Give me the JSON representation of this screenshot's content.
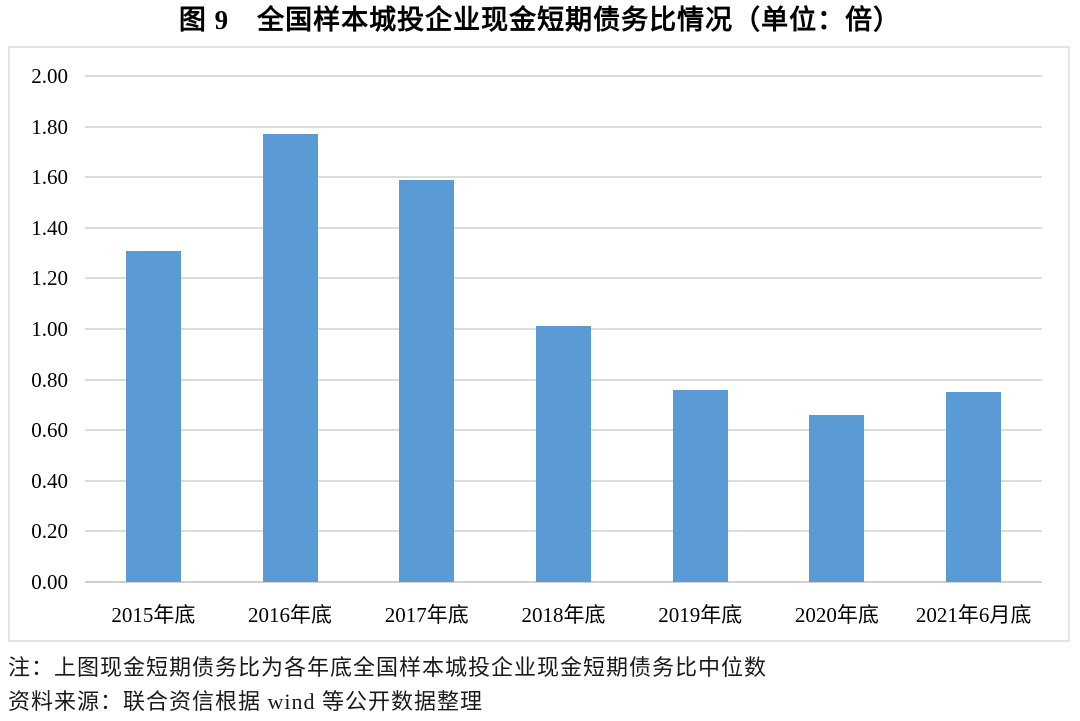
{
  "title": "图 9　全国样本城投企业现金短期债务比情况（单位：倍）",
  "notes": {
    "note1": "注：上图现金短期债务比为各年底全国样本城投企业现金短期债务比中位数",
    "note2": "资料来源：联合资信根据 wind 等公开数据整理"
  },
  "colors": {
    "bar": "#5b9bd5",
    "gridline": "#dcdcdc",
    "baseline": "#d0d0d0",
    "frame_border": "#e3e3e3",
    "text": "#000000"
  },
  "chart_data": {
    "type": "bar",
    "categories": [
      "2015年底",
      "2016年底",
      "2017年底",
      "2018年底",
      "2019年底",
      "2020年底",
      "2021年6月底"
    ],
    "values": [
      1.31,
      1.77,
      1.59,
      1.01,
      0.76,
      0.66,
      0.75
    ],
    "title": "图 9　全国样本城投企业现金短期债务比情况（单位：倍）",
    "xlabel": "",
    "ylabel": "",
    "ylim": [
      0.0,
      2.0
    ],
    "ytick_step": 0.2,
    "ytick_labels": [
      "0.00",
      "0.20",
      "0.40",
      "0.60",
      "0.80",
      "1.00",
      "1.20",
      "1.40",
      "1.60",
      "1.80",
      "2.00"
    ],
    "grid": true,
    "legend": false,
    "bar_color": "#5b9bd5"
  }
}
